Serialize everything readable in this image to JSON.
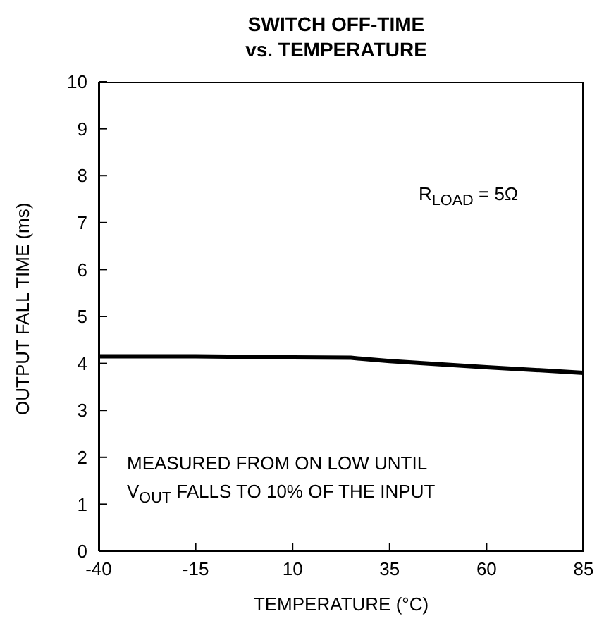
{
  "chart_data": {
    "type": "line",
    "title": "SWITCH OFF-TIME",
    "subtitle": "vs. TEMPERATURE",
    "xlabel": "TEMPERATURE (°C)",
    "ylabel": "OUTPUT FALL TIME (ms)",
    "x": [
      -40,
      -15,
      10,
      25,
      35,
      60,
      85
    ],
    "series": [
      {
        "color": "#000000",
        "values": [
          4.15,
          4.15,
          4.13,
          4.12,
          4.05,
          3.92,
          3.8
        ]
      }
    ],
    "xlim": [
      -40,
      85
    ],
    "xticks": [
      -40,
      -15,
      10,
      35,
      60,
      85
    ],
    "ylim": [
      0,
      10
    ],
    "yticks": [
      0,
      1,
      2,
      3,
      4,
      5,
      6,
      7,
      8,
      9,
      10
    ],
    "grid": false,
    "legend": false,
    "marker": "none",
    "line_style": "solid",
    "annotations": [
      "R$_{LOAD}$ = 5Ω",
      "MEASURED FROM ON LOW UNTIL",
      "V$_{OUT}$ FALLS TO 10% OF THE INPUT"
    ]
  }
}
